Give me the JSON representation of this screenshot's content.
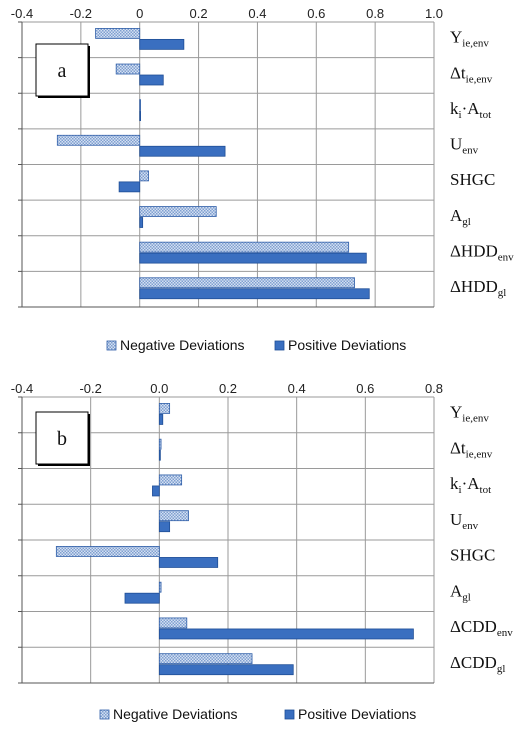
{
  "colors": {
    "positive_fill": "#3a6fc0",
    "positive_stroke": "#1f4e96",
    "negative_fill": "#b9cdea",
    "negative_stroke": "#2f5ea8",
    "grid": "#9a9a9a",
    "axis": "#000000"
  },
  "chart_data": [
    {
      "type": "bar",
      "orientation": "horizontal",
      "panel_label": "a",
      "xlim": [
        -0.4,
        1.0
      ],
      "xticks": [
        -0.4,
        -0.2,
        0,
        0.2,
        0.4,
        0.6,
        0.8,
        1.0
      ],
      "xtick_labels": [
        "-0.4",
        "-0.2",
        "0",
        "0.2",
        "0.4",
        "0.6",
        "0.8",
        "1.0"
      ],
      "grid": true,
      "legend_position": "bottom",
      "categories": [
        {
          "main": "Y",
          "sub": "ie,env"
        },
        {
          "main": "Δt",
          "sub": "ie,env"
        },
        {
          "main": "k",
          "sub": "i",
          "tail": "·A",
          "sub2": "tot"
        },
        {
          "main": "U",
          "sub": "env"
        },
        {
          "main": "SHGC"
        },
        {
          "main": "A",
          "sub": "gl"
        },
        {
          "main": "ΔHDD",
          "sub": "env"
        },
        {
          "main": "ΔHDD",
          "sub": "gl"
        }
      ],
      "series": [
        {
          "name": "Negative Deviations",
          "values": [
            -0.15,
            -0.08,
            0.0,
            -0.28,
            0.03,
            0.26,
            0.71,
            0.73
          ]
        },
        {
          "name": "Positive Deviations",
          "values": [
            0.15,
            0.08,
            0.003,
            0.29,
            -0.07,
            0.01,
            0.77,
            0.78
          ]
        }
      ]
    },
    {
      "type": "bar",
      "orientation": "horizontal",
      "panel_label": "b",
      "xlim": [
        -0.4,
        0.8
      ],
      "xticks": [
        -0.4,
        -0.2,
        0,
        0.2,
        0.4,
        0.6,
        0.8
      ],
      "xtick_labels": [
        "-0.4",
        "-0.2",
        "0.0",
        "0.2",
        "0.4",
        "0.6",
        "0.8"
      ],
      "grid": true,
      "legend_position": "bottom",
      "categories": [
        {
          "main": "Y",
          "sub": "ie,env"
        },
        {
          "main": "Δt",
          "sub": "ie,env"
        },
        {
          "main": "k",
          "sub": "i",
          "tail": "·A",
          "sub2": "tot"
        },
        {
          "main": "U",
          "sub": "env"
        },
        {
          "main": "SHGC"
        },
        {
          "main": "A",
          "sub": "gl"
        },
        {
          "main": "ΔCDD",
          "sub": "env"
        },
        {
          "main": "ΔCDD",
          "sub": "gl"
        }
      ],
      "series": [
        {
          "name": "Negative Deviations",
          "values": [
            0.03,
            0.005,
            0.065,
            0.085,
            -0.3,
            0.005,
            0.08,
            0.27
          ]
        },
        {
          "name": "Positive Deviations",
          "values": [
            0.01,
            0.003,
            -0.02,
            0.03,
            0.17,
            -0.1,
            0.74,
            0.39
          ]
        }
      ]
    }
  ]
}
